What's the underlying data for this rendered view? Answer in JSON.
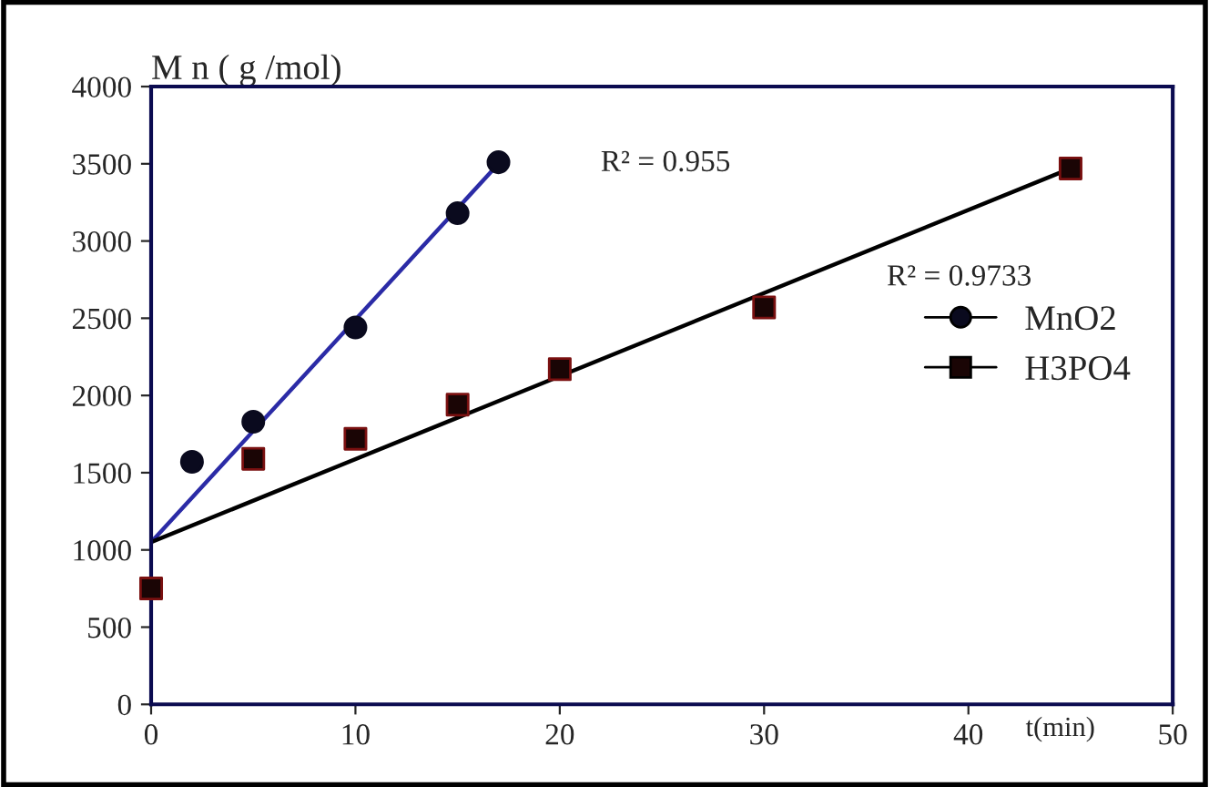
{
  "chart_data": {
    "type": "scatter",
    "ylabel": "M n ( g /mol)",
    "xlabel": "t(min)",
    "xlim": [
      0,
      50
    ],
    "xticks": [
      0,
      10,
      20,
      30,
      40,
      50
    ],
    "ylim": [
      0,
      4000
    ],
    "yticks": [
      0,
      500,
      1000,
      1500,
      2000,
      2500,
      3000,
      3500,
      4000
    ],
    "grid": false,
    "legend": "right",
    "series": [
      {
        "name": "MnO2",
        "marker": "circle",
        "color": "#0a0a1e",
        "x": [
          2,
          5,
          10,
          15,
          17
        ],
        "values": [
          1570,
          1830,
          2440,
          3180,
          3510
        ]
      },
      {
        "name": "H3PO4",
        "marker": "square",
        "color": "#1a0505",
        "x": [
          0,
          5,
          10,
          15,
          20,
          30,
          45
        ],
        "values": [
          750,
          1590,
          1720,
          1940,
          2170,
          2570,
          3470
        ]
      },
      {
        "type": "line",
        "marker": "none",
        "color": "#2b2ba6",
        "x": [
          0,
          17
        ],
        "values": [
          1050,
          3500
        ]
      },
      {
        "type": "line",
        "marker": "none",
        "color": "#000000",
        "x": [
          0,
          45
        ],
        "values": [
          1050,
          3470
        ]
      }
    ],
    "annotations": [
      "R² = 0.955",
      "R² = 0.9733"
    ]
  }
}
